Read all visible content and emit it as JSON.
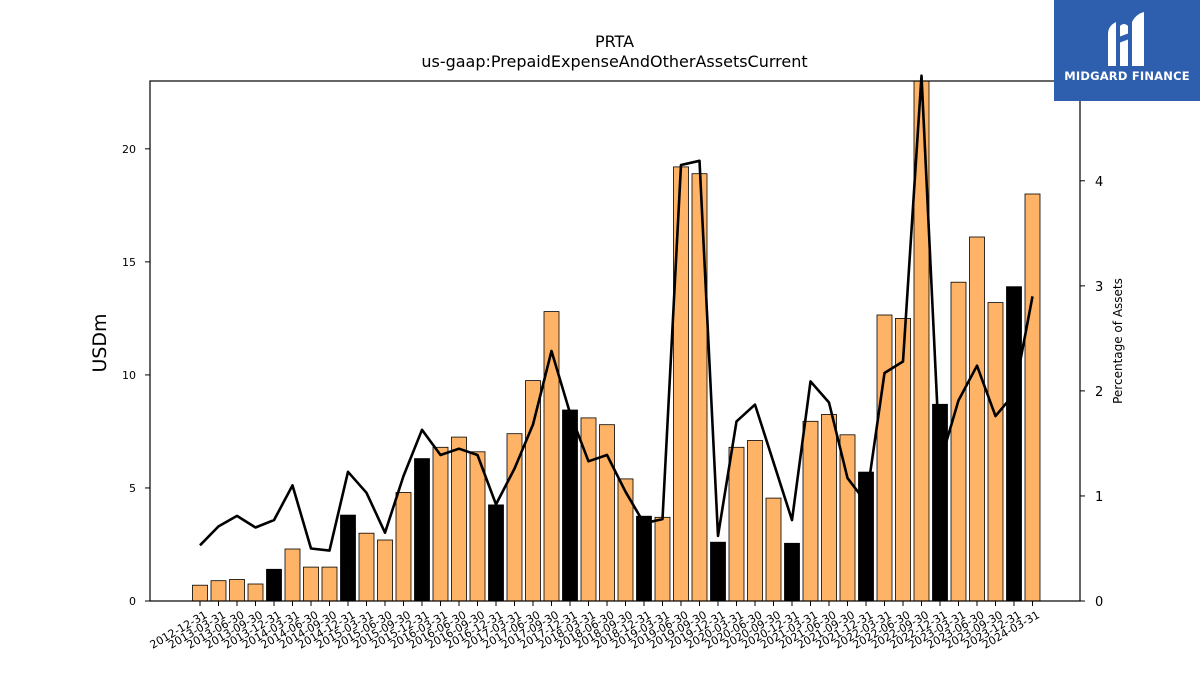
{
  "title": "PRTA",
  "subtitle": "us-gaap:PrepaidExpenseAndOtherAssetsCurrent",
  "logo": {
    "text": "MIDGARD FINANCE",
    "color": "#2d5fae"
  },
  "chart_data": {
    "type": "bar",
    "title": "PRTA",
    "subtitle": "us-gaap:PrepaidExpenseAndOtherAssetsCurrent",
    "ylabel": "USDm",
    "y2label": "Percentage of Assets",
    "ylim": [
      0,
      23
    ],
    "y2lim": [
      0,
      4.95
    ],
    "yticks": [
      0,
      5,
      10,
      15,
      20
    ],
    "y2ticks": [
      0,
      1,
      2,
      3,
      4
    ],
    "grid": false,
    "colors": {
      "bar": "#ffb366",
      "bar_highlight": "#000000",
      "line": "#000000"
    },
    "categories": [
      "2012-12-31",
      "2013-03-31",
      "2013-06-30",
      "2013-09-30",
      "2013-12-31",
      "2014-03-31",
      "2014-06-30",
      "2014-09-30",
      "2014-12-31",
      "2015-03-31",
      "2015-06-30",
      "2015-09-30",
      "2015-12-31",
      "2016-03-31",
      "2016-06-30",
      "2016-09-30",
      "2016-12-31",
      "2017-03-31",
      "2017-06-30",
      "2017-09-30",
      "2017-12-31",
      "2018-03-31",
      "2018-06-30",
      "2018-09-30",
      "2018-12-31",
      "2019-03-31",
      "2019-06-30",
      "2019-09-30",
      "2019-12-31",
      "2020-03-31",
      "2020-06-30",
      "2020-09-30",
      "2020-12-31",
      "2021-03-31",
      "2021-06-30",
      "2021-09-30",
      "2021-12-31",
      "2022-03-31",
      "2022-06-30",
      "2022-09-30",
      "2022-12-31",
      "2023-03-31",
      "2023-06-30",
      "2023-09-30",
      "2023-12-31",
      "2024-03-31"
    ],
    "series": [
      {
        "type": "bar",
        "values": [
          0.7,
          0.9,
          0.95,
          0.75,
          1.4,
          2.3,
          1.5,
          1.5,
          3.8,
          3.0,
          2.7,
          4.8,
          6.3,
          6.8,
          7.25,
          6.6,
          4.25,
          7.4,
          9.75,
          12.8,
          8.45,
          8.1,
          7.8,
          5.4,
          3.75,
          3.7,
          19.2,
          18.9,
          2.6,
          6.8,
          7.1,
          4.55,
          2.55,
          7.95,
          8.25,
          7.35,
          5.7,
          12.65,
          12.5,
          23.0,
          8.7,
          14.1,
          16.1,
          13.2,
          13.9,
          18.0
        ],
        "highlight": [
          false,
          false,
          false,
          false,
          true,
          false,
          false,
          false,
          true,
          false,
          false,
          false,
          true,
          false,
          false,
          false,
          true,
          false,
          false,
          false,
          true,
          false,
          false,
          false,
          true,
          false,
          false,
          false,
          true,
          false,
          false,
          false,
          true,
          false,
          false,
          false,
          true,
          false,
          false,
          false,
          true,
          false,
          false,
          false,
          true,
          false
        ]
      },
      {
        "type": "line",
        "axis": "right",
        "values": [
          0.53,
          0.71,
          0.81,
          0.7,
          0.77,
          1.1,
          0.5,
          0.48,
          1.23,
          1.03,
          0.65,
          1.19,
          1.63,
          1.39,
          1.45,
          1.39,
          0.92,
          1.26,
          1.68,
          2.38,
          1.79,
          1.33,
          1.39,
          1.04,
          0.74,
          0.78,
          4.15,
          4.19,
          0.62,
          1.71,
          1.87,
          1.32,
          0.77,
          2.09,
          1.89,
          1.17,
          0.94,
          2.17,
          2.28,
          5.0,
          1.31,
          1.91,
          2.24,
          1.76,
          1.97,
          2.9
        ]
      }
    ]
  }
}
